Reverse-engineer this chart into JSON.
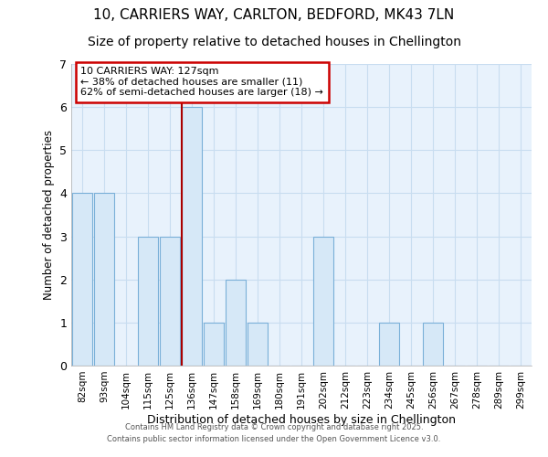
{
  "title_line1": "10, CARRIERS WAY, CARLTON, BEDFORD, MK43 7LN",
  "title_line2": "Size of property relative to detached houses in Chellington",
  "xlabel": "Distribution of detached houses by size in Chellington",
  "ylabel": "Number of detached properties",
  "categories": [
    "82sqm",
    "93sqm",
    "104sqm",
    "115sqm",
    "125sqm",
    "136sqm",
    "147sqm",
    "158sqm",
    "169sqm",
    "180sqm",
    "191sqm",
    "202sqm",
    "212sqm",
    "223sqm",
    "234sqm",
    "245sqm",
    "256sqm",
    "267sqm",
    "278sqm",
    "289sqm",
    "299sqm"
  ],
  "values": [
    4,
    4,
    0,
    3,
    3,
    6,
    1,
    2,
    1,
    0,
    0,
    3,
    0,
    0,
    1,
    0,
    1,
    0,
    0,
    0,
    0
  ],
  "bar_color": "#d6e8f7",
  "bar_edge_color": "#7ab0d8",
  "vline_color": "#aa0000",
  "annotation_text": "10 CARRIERS WAY: 127sqm\n← 38% of detached houses are smaller (11)\n62% of semi-detached houses are larger (18) →",
  "annotation_box_color": "#ffffff",
  "annotation_box_edge_color": "#cc0000",
  "ylim": [
    0,
    7
  ],
  "yticks": [
    0,
    1,
    2,
    3,
    4,
    5,
    6,
    7
  ],
  "footer_line1": "Contains HM Land Registry data © Crown copyright and database right 2025.",
  "footer_line2": "Contains public sector information licensed under the Open Government Licence v3.0.",
  "fig_bg_color": "#ffffff",
  "plot_bg_color": "#e8f2fc",
  "grid_color": "#c8ddf0",
  "title1_fontsize": 11,
  "title2_fontsize": 10
}
